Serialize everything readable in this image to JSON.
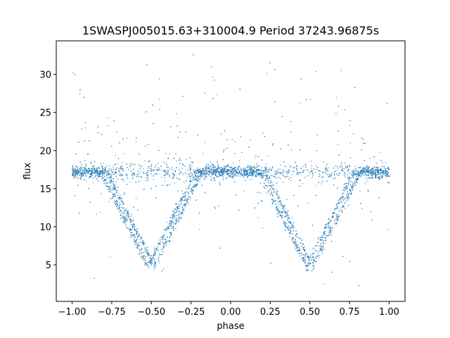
{
  "chart_data": {
    "type": "scatter",
    "title": "1SWASPJ005015.63+310004.9 Period 37243.96875s",
    "xlabel": "phase",
    "ylabel": "flux",
    "xlim": [
      -1.1,
      1.1
    ],
    "ylim": [
      0.2,
      34.4
    ],
    "xticks": [
      -1.0,
      -0.75,
      -0.5,
      -0.25,
      0.0,
      0.25,
      0.5,
      0.75,
      1.0
    ],
    "xtick_labels": [
      "−1.00",
      "−0.75",
      "−0.50",
      "−0.25",
      "0.00",
      "0.25",
      "0.50",
      "0.75",
      "1.00"
    ],
    "yticks": [
      5,
      10,
      15,
      20,
      25,
      30
    ],
    "ytick_labels": [
      "5",
      "10",
      "15",
      "20",
      "25",
      "30"
    ],
    "grid": false,
    "legend": "none",
    "marker_color": "#1f77b4",
    "series": [
      {
        "description_free": true,
        "baseline_flux": 17.2,
        "eclipse_centers": [
          -0.5,
          0.5
        ],
        "eclipse_min_flux": 4.8,
        "eclipse_half_width": 0.3,
        "x": [
          -1.0,
          -0.9,
          -0.8,
          -0.75,
          -0.7,
          -0.65,
          -0.6,
          -0.55,
          -0.5,
          -0.45,
          -0.4,
          -0.35,
          -0.3,
          -0.25,
          -0.2,
          -0.1,
          0.0,
          0.1,
          0.2,
          0.25,
          0.3,
          0.35,
          0.4,
          0.45,
          0.5,
          0.55,
          0.6,
          0.65,
          0.7,
          0.75,
          0.8,
          0.9,
          1.0
        ],
        "y": [
          17.2,
          17.2,
          17.0,
          15.0,
          13.0,
          10.9,
          8.8,
          6.6,
          4.8,
          6.6,
          8.8,
          10.9,
          13.0,
          15.0,
          17.0,
          17.2,
          17.2,
          17.2,
          17.0,
          15.0,
          13.0,
          10.9,
          8.8,
          6.6,
          4.8,
          6.6,
          8.8,
          10.9,
          13.0,
          15.0,
          17.0,
          17.2,
          17.2
        ]
      }
    ]
  }
}
